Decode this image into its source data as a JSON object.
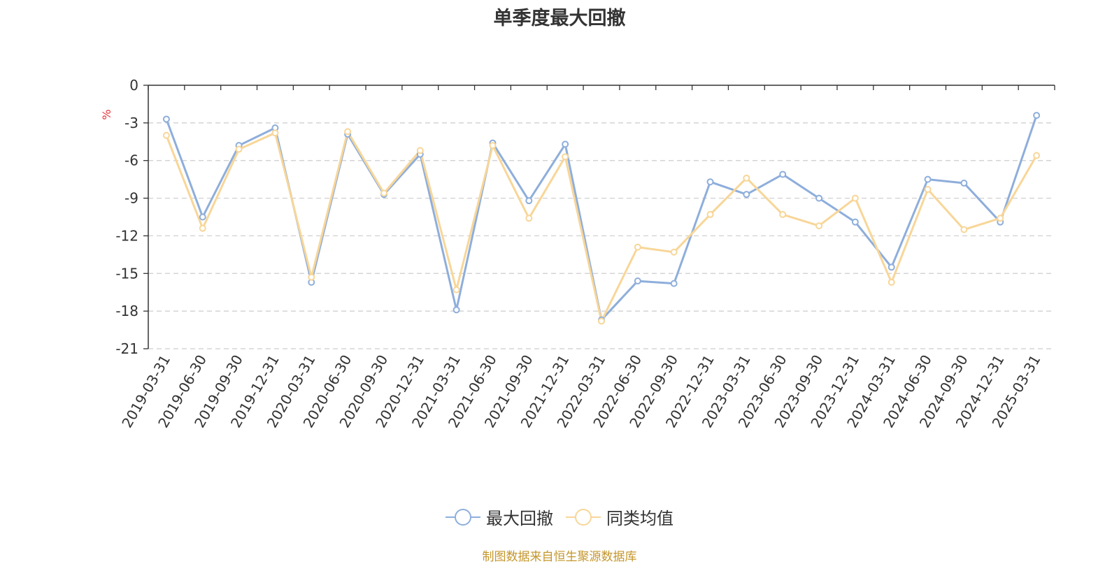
{
  "chart_data": {
    "type": "line",
    "title": "单季度最大回撤",
    "ylabel": "%",
    "ylim": [
      -21,
      0
    ],
    "yticks": [
      0,
      -3,
      -6,
      -9,
      -12,
      -15,
      -18,
      -21
    ],
    "grid": true,
    "legend_position": "bottom",
    "categories": [
      "2019-03-31",
      "2019-06-30",
      "2019-09-30",
      "2019-12-31",
      "2020-03-31",
      "2020-06-30",
      "2020-09-30",
      "2020-12-31",
      "2021-03-31",
      "2021-06-30",
      "2021-09-30",
      "2021-12-31",
      "2022-03-31",
      "2022-06-30",
      "2022-09-30",
      "2022-12-31",
      "2023-03-31",
      "2023-06-30",
      "2023-09-30",
      "2023-12-31",
      "2024-03-31",
      "2024-06-30",
      "2024-09-30",
      "2024-12-31",
      "2025-03-31"
    ],
    "series": [
      {
        "name": "最大回撤",
        "color": "#8eaedb",
        "values": [
          -2.7,
          -10.5,
          -4.8,
          -3.4,
          -15.7,
          -3.9,
          -8.7,
          -5.5,
          -17.9,
          -4.6,
          -9.2,
          -4.7,
          -18.7,
          -15.6,
          -15.8,
          -7.7,
          -8.7,
          -7.1,
          -9.0,
          -10.9,
          -14.5,
          -7.5,
          -7.8,
          -10.9,
          -2.4
        ]
      },
      {
        "name": "同类均值",
        "color": "#f8d698",
        "values": [
          -4.0,
          -11.4,
          -5.1,
          -3.8,
          -15.3,
          -3.7,
          -8.6,
          -5.2,
          -16.3,
          -4.8,
          -10.6,
          -5.7,
          -18.8,
          -12.9,
          -13.3,
          -10.3,
          -7.4,
          -10.3,
          -11.2,
          -9.0,
          -15.7,
          -8.3,
          -11.5,
          -10.6,
          -5.6
        ]
      }
    ]
  },
  "source_note": "制图数据来自恒生聚源数据库"
}
